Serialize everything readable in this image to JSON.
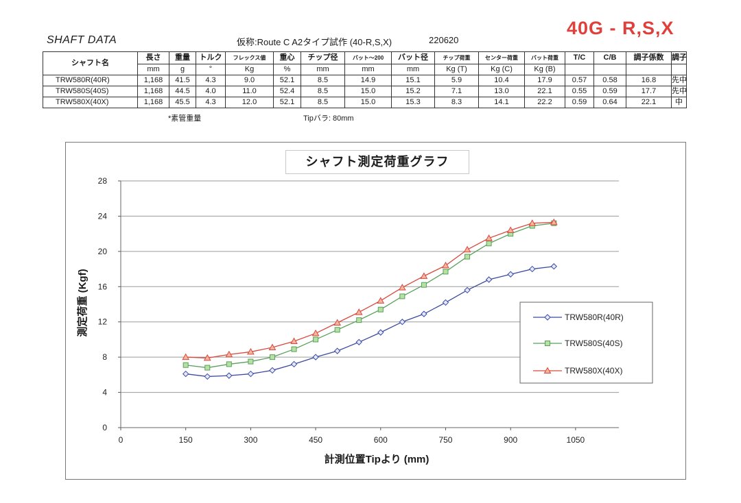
{
  "header": {
    "title": "SHAFT DATA",
    "subtitle": "仮称:Route C A2タイプ試作 (40-R,S,X)",
    "date_code": "220620",
    "model": "40G - R,S,X",
    "model_color": "#e0403c"
  },
  "table": {
    "headers": [
      "シャフト名",
      "長さ",
      "重量",
      "トルク",
      "フレックス値",
      "重心",
      "チップ径",
      "バット～200",
      "バット径",
      "チップ荷重",
      "センター荷重",
      "バット荷重",
      "T/C",
      "C/B",
      "調子係数",
      "調子"
    ],
    "units": [
      "mm",
      "g",
      "°",
      "Kg",
      "%",
      "mm",
      "mm",
      "mm",
      "Kg (T)",
      "Kg (C)",
      "Kg (B)",
      "",
      "",
      "",
      ""
    ],
    "rows": [
      [
        "TRW580R(40R)",
        "1,168",
        "41.5",
        "4.3",
        "9.0",
        "52.1",
        "8.5",
        "14.9",
        "15.1",
        "5.9",
        "10.4",
        "17.9",
        "0.57",
        "0.58",
        "16.8",
        "先中"
      ],
      [
        "TRW580S(40S)",
        "1,168",
        "44.5",
        "4.0",
        "11.0",
        "52.4",
        "8.5",
        "15.0",
        "15.2",
        "7.1",
        "13.0",
        "22.1",
        "0.55",
        "0.59",
        "17.7",
        "先中"
      ],
      [
        "TRW580X(40X)",
        "1,168",
        "45.5",
        "4.3",
        "12.0",
        "52.1",
        "8.5",
        "15.0",
        "15.3",
        "8.3",
        "14.1",
        "22.2",
        "0.59",
        "0.64",
        "22.1",
        "中"
      ]
    ]
  },
  "notes": {
    "weight_note": "*素管重量",
    "tip_note": "Tipバラ: 80mm"
  },
  "chart_data": {
    "type": "line",
    "title": "シャフト測定荷重グラフ",
    "xlabel": "計測位置Tipより (mm)",
    "ylabel": "測定荷重 (Kgf)",
    "x": [
      150,
      200,
      250,
      300,
      350,
      400,
      450,
      500,
      550,
      600,
      650,
      700,
      750,
      800,
      850,
      900,
      950,
      1000
    ],
    "xlim": [
      0,
      1150
    ],
    "ylim": [
      0,
      28
    ],
    "x_ticks": [
      0,
      150,
      300,
      450,
      600,
      750,
      900,
      1050
    ],
    "y_ticks": [
      0,
      4,
      8,
      12,
      16,
      20,
      24,
      28
    ],
    "grid": "horizontal",
    "legend": "right",
    "series": [
      {
        "name": "TRW580R(40R)",
        "color": "#3b4aa0",
        "fill": "#e4e9ff",
        "marker": "diamond",
        "values": [
          6.1,
          5.8,
          5.9,
          6.1,
          6.5,
          7.2,
          8.0,
          8.7,
          9.7,
          10.8,
          12.0,
          12.9,
          14.2,
          15.6,
          16.8,
          17.4,
          18.0,
          18.3
        ]
      },
      {
        "name": "TRW580S(40S)",
        "color": "#58a05a",
        "fill": "#b7e0a5",
        "marker": "square",
        "values": [
          7.1,
          6.8,
          7.2,
          7.5,
          8.0,
          8.9,
          10.0,
          11.1,
          12.2,
          13.4,
          14.9,
          16.2,
          17.7,
          19.4,
          20.9,
          22.0,
          22.9,
          23.2
        ]
      },
      {
        "name": "TRW580X(40X)",
        "color": "#d9473c",
        "fill": "#f5b6a0",
        "marker": "triangle",
        "values": [
          8.0,
          7.9,
          8.3,
          8.6,
          9.1,
          9.8,
          10.7,
          11.9,
          13.1,
          14.4,
          15.9,
          17.2,
          18.4,
          20.2,
          21.5,
          22.4,
          23.2,
          23.3
        ]
      }
    ]
  }
}
